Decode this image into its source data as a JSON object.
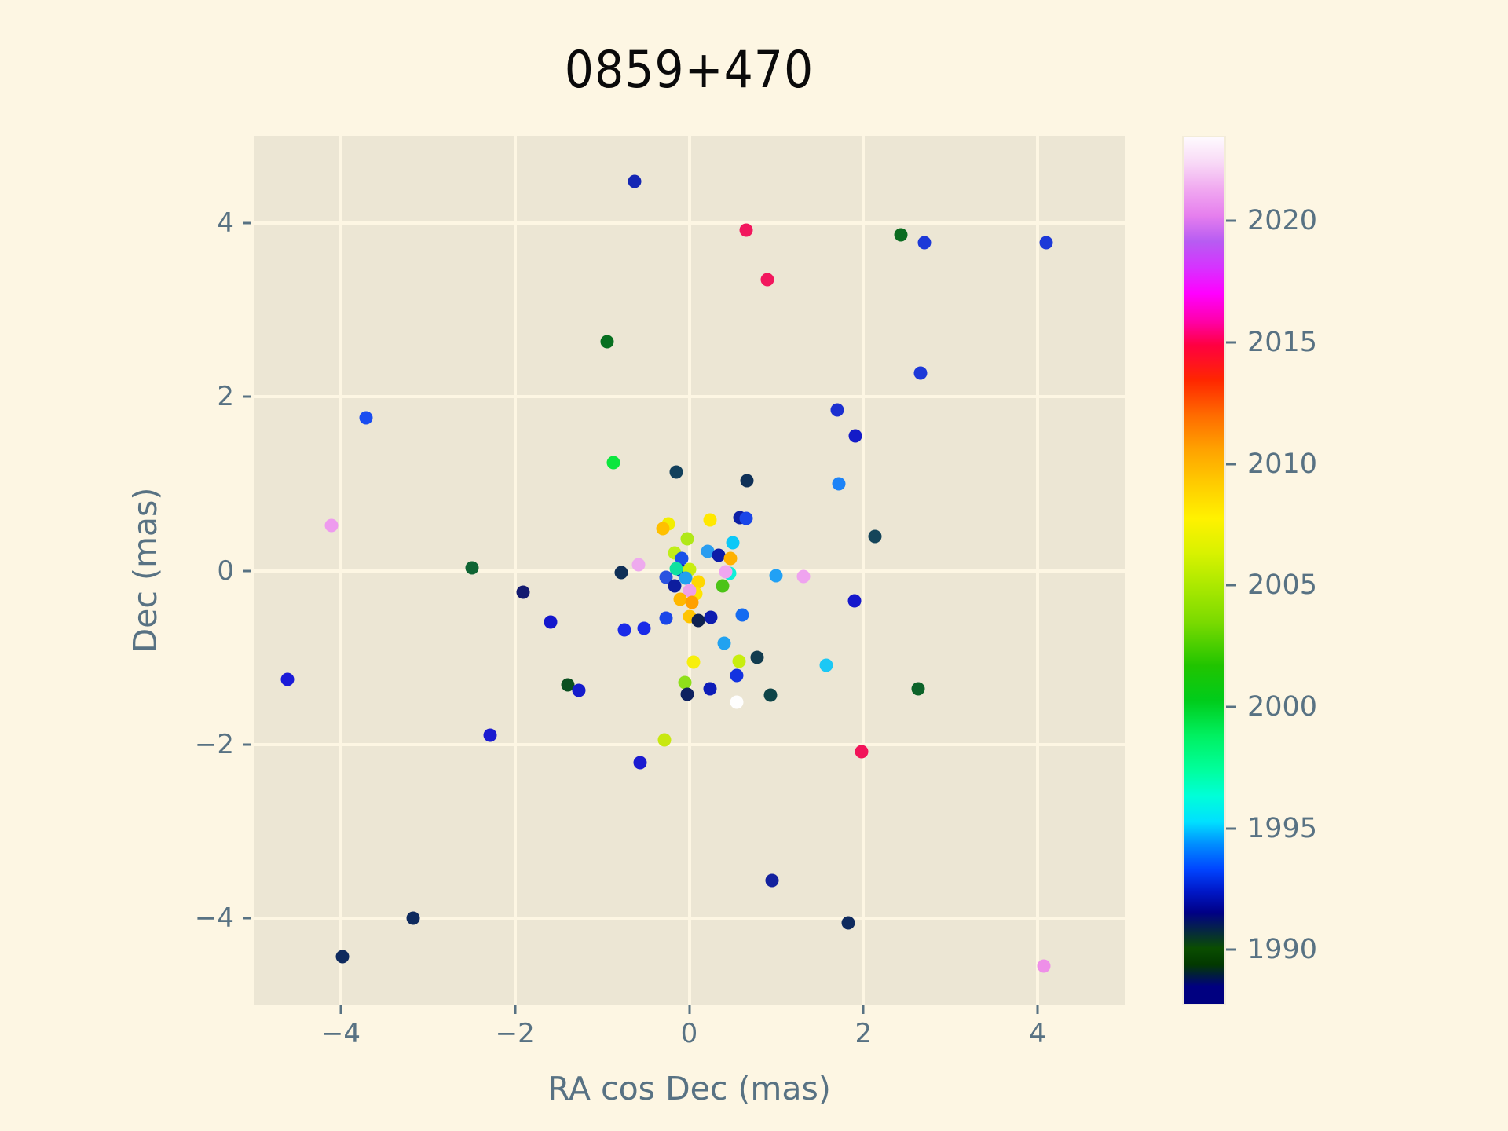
{
  "title": "0859+470",
  "colors": {
    "figure_bg": "#fdf6e3",
    "axes_bg": "#ece6d4",
    "grid": "#fdf6e3",
    "tick_label": "#587283",
    "title_color": "#0a0a0a"
  },
  "chart_data": {
    "type": "scatter",
    "title": "0859+470",
    "xlabel": "RA cos Dec (mas)",
    "ylabel": "Dec (mas)",
    "xlim": [
      -5,
      5
    ],
    "ylim": [
      -5,
      5
    ],
    "grid": true,
    "legend": "none",
    "x_tick_values": [
      -4,
      -2,
      0,
      2,
      4
    ],
    "x_tick_labels": [
      "−4",
      "−2",
      "0",
      "2",
      "4"
    ],
    "y_tick_values": [
      4,
      2,
      0,
      -2,
      -4
    ],
    "y_tick_labels": [
      "4",
      "2",
      "0",
      "−2",
      "−4"
    ],
    "colorbar": {
      "colormap": "gist_ncar",
      "year_min": 1987.72,
      "year_max": 2023.5,
      "tick_years": [
        2020,
        2015,
        2010,
        2005,
        2000,
        1995,
        1990
      ],
      "tick_labels": [
        "2020",
        "2015",
        "2010",
        "2005",
        "2000",
        "1995",
        "1990"
      ]
    },
    "points": [
      {
        "x": -3.71,
        "y": 1.76,
        "color": "#1a4df0"
      },
      {
        "x": -0.63,
        "y": 4.48,
        "color": "#1527b4"
      },
      {
        "x": 0.65,
        "y": 3.92,
        "color": "#f2175d"
      },
      {
        "x": 0.9,
        "y": 3.35,
        "color": "#f2175d"
      },
      {
        "x": -0.94,
        "y": 2.63,
        "color": "#077020"
      },
      {
        "x": 2.43,
        "y": 3.86,
        "color": "#0b6b20"
      },
      {
        "x": 2.7,
        "y": 3.77,
        "color": "#1d39d8"
      },
      {
        "x": 4.1,
        "y": 3.77,
        "color": "#1d39d8"
      },
      {
        "x": 2.66,
        "y": 2.27,
        "color": "#1d39d8"
      },
      {
        "x": 1.7,
        "y": 1.85,
        "color": "#1b2fd0"
      },
      {
        "x": 1.91,
        "y": 1.55,
        "color": "#141bc8"
      },
      {
        "x": 1.72,
        "y": 1.0,
        "color": "#1d83f7"
      },
      {
        "x": 2.13,
        "y": 0.39,
        "color": "#15455a"
      },
      {
        "x": 1.9,
        "y": -0.35,
        "color": "#1518cc"
      },
      {
        "x": 2.63,
        "y": -1.36,
        "color": "#0c6329"
      },
      {
        "x": -4.11,
        "y": 0.52,
        "color": "#ee9bee"
      },
      {
        "x": -2.49,
        "y": 0.03,
        "color": "#0e6433"
      },
      {
        "x": -1.91,
        "y": -0.25,
        "color": "#131a70"
      },
      {
        "x": -4.61,
        "y": -1.25,
        "color": "#1b1bd8"
      },
      {
        "x": -2.29,
        "y": -1.89,
        "color": "#1b1bd0"
      },
      {
        "x": -3.17,
        "y": -4.0,
        "color": "#0e2a5e"
      },
      {
        "x": -3.98,
        "y": -4.44,
        "color": "#0e2a5e"
      },
      {
        "x": -0.28,
        "y": -1.95,
        "color": "#c8e810"
      },
      {
        "x": -0.56,
        "y": -2.21,
        "color": "#1b1bd0"
      },
      {
        "x": 0.95,
        "y": -3.56,
        "color": "#13219e"
      },
      {
        "x": 1.98,
        "y": -2.08,
        "color": "#f21459"
      },
      {
        "x": 1.83,
        "y": -4.05,
        "color": "#0e2a5e"
      },
      {
        "x": 4.07,
        "y": -4.55,
        "color": "#ee8fe8"
      },
      {
        "x": -0.87,
        "y": 1.24,
        "color": "#0ce63e"
      },
      {
        "x": -0.15,
        "y": 1.13,
        "color": "#12405c"
      },
      {
        "x": 0.66,
        "y": 1.03,
        "color": "#0f3057"
      },
      {
        "x": -1.59,
        "y": -0.59,
        "color": "#1417cc"
      },
      {
        "x": -0.74,
        "y": -0.68,
        "color": "#1a2ae8"
      },
      {
        "x": -0.52,
        "y": -0.66,
        "color": "#1a2ae8"
      },
      {
        "x": 0.4,
        "y": -0.84,
        "color": "#22a2f0"
      },
      {
        "x": 0.05,
        "y": -1.05,
        "color": "#f7ef0c"
      },
      {
        "x": 0.57,
        "y": -1.04,
        "color": "#c8ee0e"
      },
      {
        "x": 0.78,
        "y": -1.0,
        "color": "#123c4f"
      },
      {
        "x": 1.57,
        "y": -1.09,
        "color": "#1cc8f5"
      },
      {
        "x": 0.55,
        "y": -1.21,
        "color": "#1332e0"
      },
      {
        "x": -1.39,
        "y": -1.31,
        "color": "#0a4f20"
      },
      {
        "x": -1.27,
        "y": -1.38,
        "color": "#151ccc"
      },
      {
        "x": -0.05,
        "y": -1.29,
        "color": "#8fe01a"
      },
      {
        "x": -0.02,
        "y": -1.42,
        "color": "#0e2160"
      },
      {
        "x": 0.24,
        "y": -1.36,
        "color": "#0d1cb8"
      },
      {
        "x": 0.55,
        "y": -1.51,
        "color": "#fefefe"
      },
      {
        "x": 0.93,
        "y": -1.43,
        "color": "#0e4448"
      },
      {
        "x": 1.0,
        "y": -0.06,
        "color": "#21a1f5"
      },
      {
        "x": 1.31,
        "y": -0.07,
        "color": "#efa3ef"
      },
      {
        "x": -0.24,
        "y": 0.54,
        "color": "#f2ee00"
      },
      {
        "x": -0.3,
        "y": 0.48,
        "color": "#ffc000"
      },
      {
        "x": 0.24,
        "y": 0.58,
        "color": "#ffe800"
      },
      {
        "x": 0.58,
        "y": 0.61,
        "color": "#0d1fa6"
      },
      {
        "x": 0.65,
        "y": 0.6,
        "color": "#1a46e8"
      },
      {
        "x": -0.02,
        "y": 0.37,
        "color": "#b0e818"
      },
      {
        "x": 0.5,
        "y": 0.32,
        "color": "#0cc8f7"
      },
      {
        "x": -0.17,
        "y": 0.2,
        "color": "#c0ee18"
      },
      {
        "x": -0.09,
        "y": 0.14,
        "color": "#1a52e8"
      },
      {
        "x": 0.21,
        "y": 0.22,
        "color": "#2a9df0"
      },
      {
        "x": 0.34,
        "y": 0.18,
        "color": "#0d1ca8"
      },
      {
        "x": 0.47,
        "y": 0.14,
        "color": "#ffb100"
      },
      {
        "x": -0.58,
        "y": 0.07,
        "color": "#eeaaee"
      },
      {
        "x": -0.09,
        "y": 0.0,
        "color": "#0d18c0"
      },
      {
        "x": -0.15,
        "y": 0.02,
        "color": "#10e0a0"
      },
      {
        "x": 0.0,
        "y": 0.01,
        "color": "#c8ee10"
      },
      {
        "x": 0.46,
        "y": -0.03,
        "color": "#0ff0d8"
      },
      {
        "x": 0.42,
        "y": -0.01,
        "color": "#f0a6f0"
      },
      {
        "x": -0.78,
        "y": -0.02,
        "color": "#0f2f57"
      },
      {
        "x": -0.04,
        "y": -0.09,
        "color": "#22a0f0"
      },
      {
        "x": -0.27,
        "y": -0.08,
        "color": "#2a52e0"
      },
      {
        "x": -0.17,
        "y": -0.18,
        "color": "#0d1d9e"
      },
      {
        "x": 0.1,
        "y": -0.13,
        "color": "#ffd700"
      },
      {
        "x": 0.08,
        "y": -0.27,
        "color": "#ffe400"
      },
      {
        "x": 0.0,
        "y": -0.23,
        "color": "#ef9fe8"
      },
      {
        "x": 0.38,
        "y": -0.18,
        "color": "#4cc417"
      },
      {
        "x": -0.1,
        "y": -0.33,
        "color": "#ffb700"
      },
      {
        "x": 0.03,
        "y": -0.37,
        "color": "#ffa000"
      },
      {
        "x": 0.0,
        "y": -0.53,
        "color": "#ffc400"
      },
      {
        "x": 0.1,
        "y": -0.57,
        "color": "#0e2150"
      },
      {
        "x": 0.25,
        "y": -0.54,
        "color": "#0d1cb0"
      },
      {
        "x": -0.27,
        "y": -0.55,
        "color": "#1a46e8"
      },
      {
        "x": 0.61,
        "y": -0.51,
        "color": "#156bf0"
      }
    ]
  }
}
